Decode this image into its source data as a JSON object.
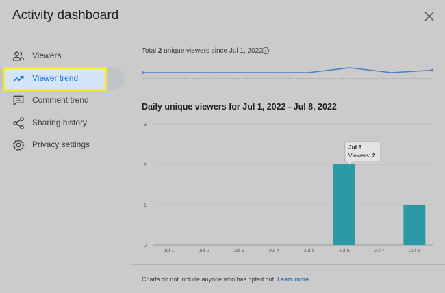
{
  "dialog": {
    "title": "Activity dashboard",
    "close_icon": "close-icon"
  },
  "sidebar": {
    "items": [
      {
        "label": "Viewers",
        "icon": "people-icon"
      },
      {
        "label": "Viewer trend",
        "icon": "trending-up-icon",
        "active": true
      },
      {
        "label": "Comment trend",
        "icon": "comment-icon"
      },
      {
        "label": "Sharing history",
        "icon": "share-icon"
      },
      {
        "label": "Privacy settings",
        "icon": "gear-icon"
      }
    ]
  },
  "summary": {
    "prefix": "Total ",
    "count": "2",
    "suffix": " unique viewers since Jul 1, 2022",
    "info_icon": "info-icon"
  },
  "sparkline": {
    "values": [
      0,
      0,
      0,
      0,
      0,
      2,
      0,
      1
    ]
  },
  "chart_section": {
    "title": "Daily unique viewers for Jul 1, 2022 - Jul 8, 2022"
  },
  "chart_data": {
    "type": "bar",
    "categories": [
      "Jul 1",
      "Jul 2",
      "Jul 3",
      "Jul 4",
      "Jul 5",
      "Jul 6",
      "Jul 7",
      "Jul 8"
    ],
    "values": [
      0,
      0,
      0,
      0,
      0,
      2,
      0,
      1
    ],
    "ylim": [
      0,
      3
    ],
    "yticks": [
      "0",
      "1",
      "2",
      "3"
    ],
    "grid": true,
    "title": "Daily unique viewers for Jul 1, 2022 - Jul 8, 2022",
    "xlabel": "",
    "ylabel": "",
    "bar_color": "#2b9aa7",
    "tooltip": {
      "date": "Jul 6",
      "label": "Viewers: ",
      "value": "2"
    }
  },
  "footer": {
    "text": "Charts do not include anyone who has opted out.",
    "link": "Learn more"
  },
  "colors": {
    "accent": "#1a73e8",
    "highlight_border": "#f5ed1f",
    "bar": "#2b9aa7"
  }
}
